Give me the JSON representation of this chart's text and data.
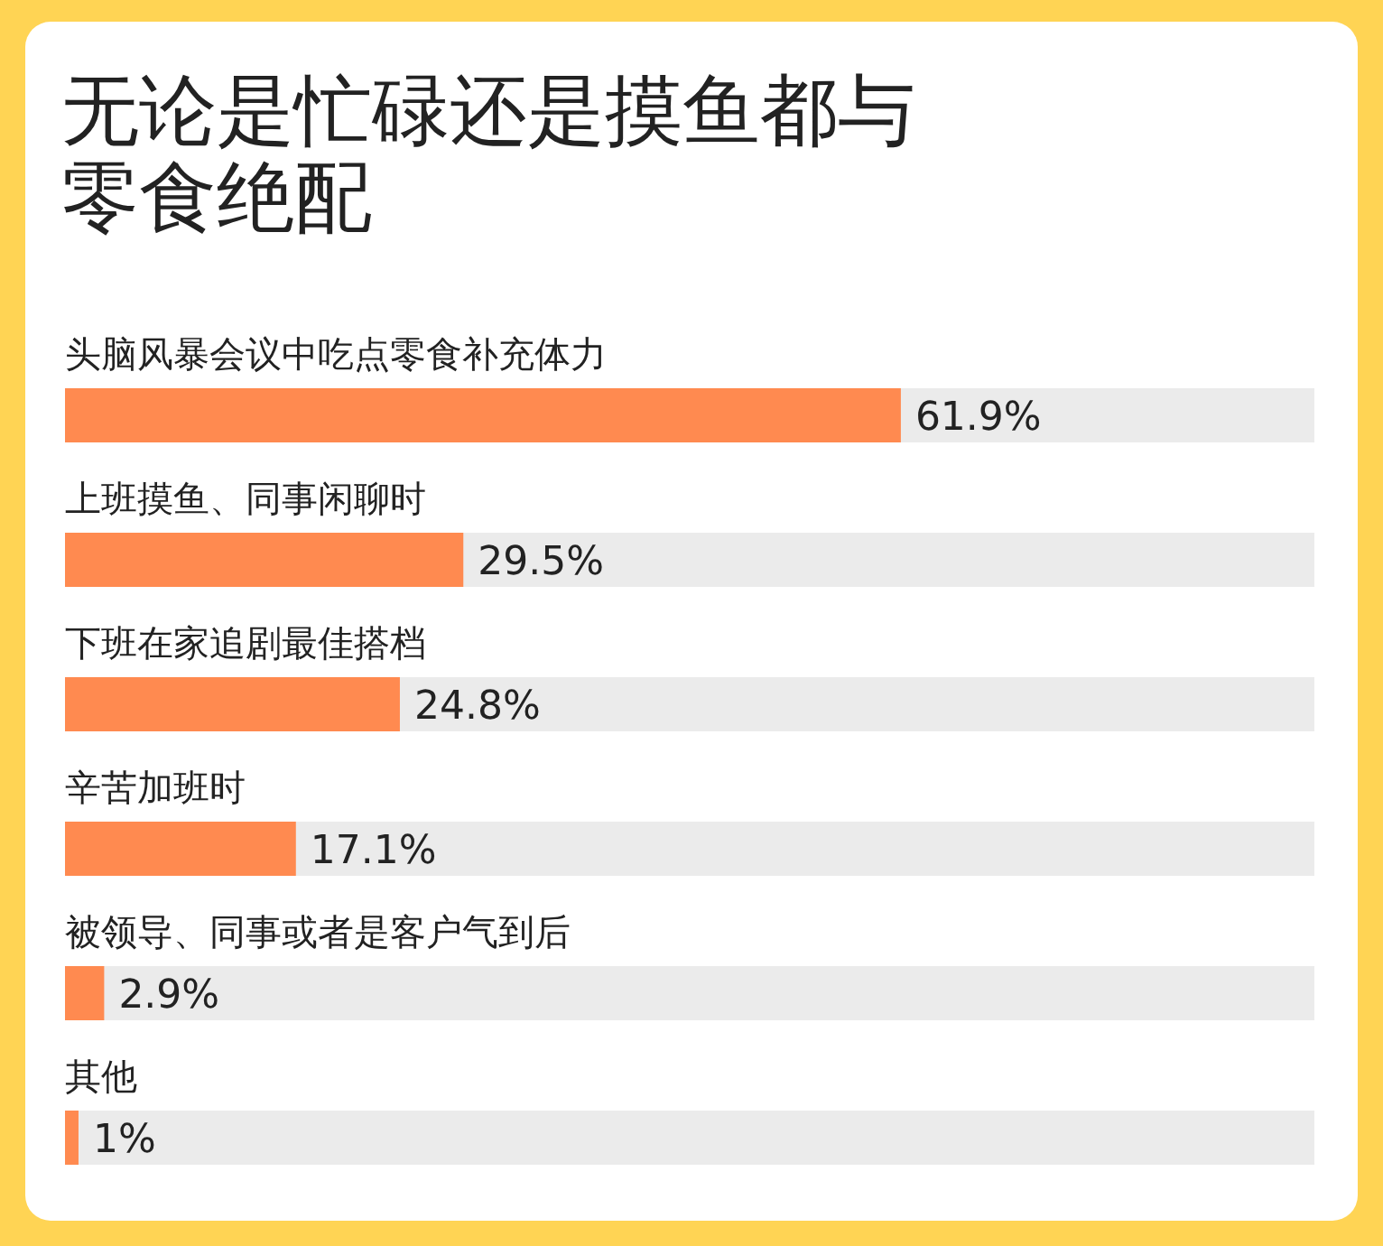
{
  "chart_data": {
    "type": "bar",
    "orientation": "horizontal",
    "title": "无论是忙碌还是摸鱼都与零食绝配",
    "categories": [
      "头脑风暴会议中吃点零食补充体力",
      "上班摸鱼、同事闲聊时",
      "下班在家追剧最佳搭档",
      "辛苦加班时",
      "被领导、同事或者是客户气到后",
      "其他"
    ],
    "values": [
      61.9,
      29.5,
      24.8,
      17.1,
      2.9,
      1
    ],
    "value_labels": [
      "61.9%",
      "29.5%",
      "24.8%",
      "17.1%",
      "2.9%",
      "1%"
    ],
    "color": "#ff8a50"
  }
}
